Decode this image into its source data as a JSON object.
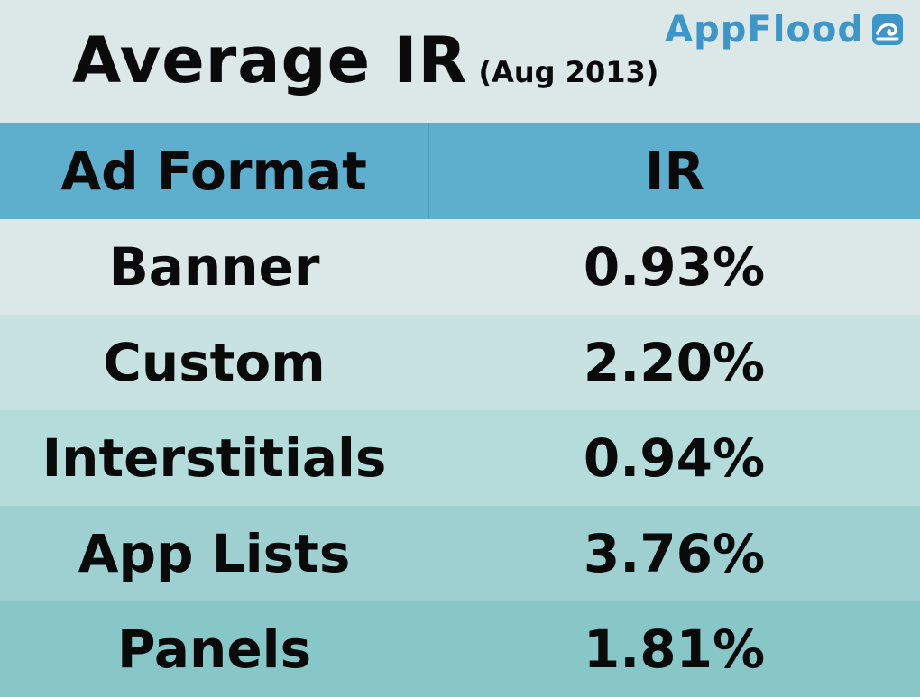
{
  "header": {
    "title": "Average IR",
    "subtitle": "(Aug 2013)",
    "brand": "AppFlood",
    "brand_icon": "wave-icon",
    "brand_color": "#3d95c8"
  },
  "chart_data": {
    "type": "table",
    "title": "Average IR",
    "subtitle": "(Aug 2013)",
    "columns": [
      "Ad Format",
      "IR"
    ],
    "rows": [
      [
        "Banner",
        "0.93%"
      ],
      [
        "Custom",
        "2.20%"
      ],
      [
        "Interstitials",
        "0.94%"
      ],
      [
        "App Lists",
        "3.76%"
      ],
      [
        "Panels",
        "1.81%"
      ]
    ],
    "header_color": "#5eaecd",
    "row_colors": [
      "#dbe8e7",
      "#c8e2e1",
      "#b4dcdb",
      "#9fd0d1",
      "#88c7c8"
    ]
  }
}
